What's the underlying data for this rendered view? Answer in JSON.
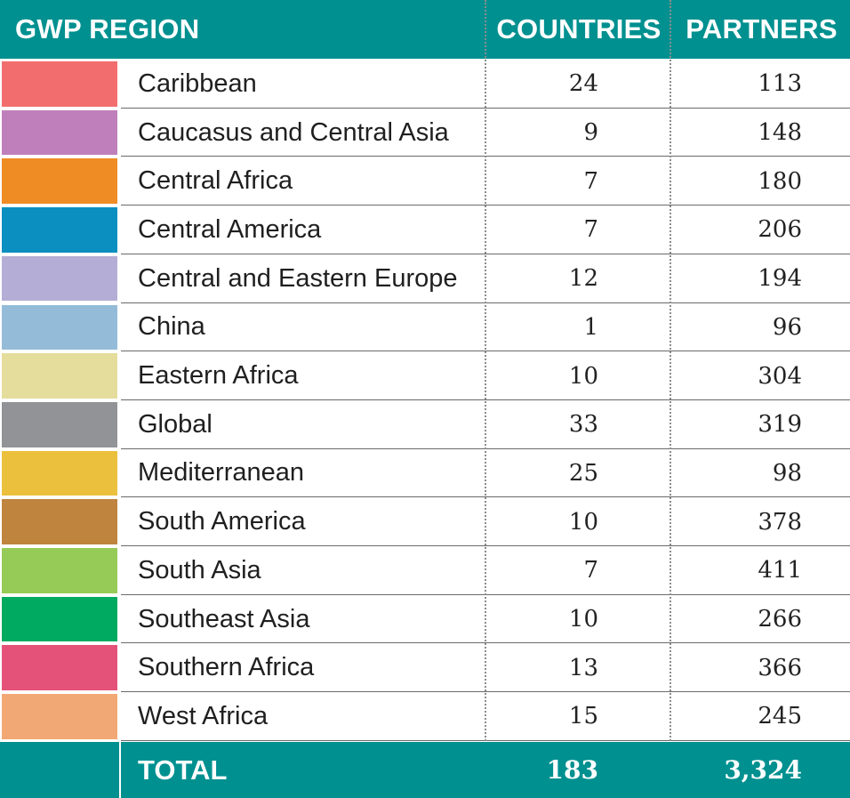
{
  "chart_data": {
    "type": "table",
    "columns": [
      "GWP REGION",
      "COUNTRIES",
      "PARTNERS"
    ],
    "rows": [
      {
        "region": "Caribbean",
        "color": "#f26e6e",
        "countries": "24",
        "partners": "113"
      },
      {
        "region": "Caucasus and Central Asia",
        "color": "#bf7fbb",
        "countries": "9",
        "partners": "148"
      },
      {
        "region": "Central Africa",
        "color": "#f08c24",
        "countries": "7",
        "partners": "180"
      },
      {
        "region": "Central America",
        "color": "#0b8ec0",
        "countries": "7",
        "partners": "206"
      },
      {
        "region": "Central and Eastern Europe",
        "color": "#b4aed6",
        "countries": "12",
        "partners": "194"
      },
      {
        "region": "China",
        "color": "#94bcd8",
        "countries": "1",
        "partners": "96"
      },
      {
        "region": "Eastern Africa",
        "color": "#e4dd9c",
        "countries": "10",
        "partners": "304"
      },
      {
        "region": "Global",
        "color": "#929396",
        "countries": "33",
        "partners": "319"
      },
      {
        "region": "Mediterranean",
        "color": "#ebc03c",
        "countries": "25",
        "partners": "98"
      },
      {
        "region": "South America",
        "color": "#bf843e",
        "countries": "10",
        "partners": "378"
      },
      {
        "region": "South Asia",
        "color": "#96cb58",
        "countries": "7",
        "partners": "411"
      },
      {
        "region": "Southeast Asia",
        "color": "#00aa60",
        "countries": "10",
        "partners": "266"
      },
      {
        "region": "Southern Africa",
        "color": "#e4527a",
        "countries": "13",
        "partners": "366"
      },
      {
        "region": "West Africa",
        "color": "#f2a874",
        "countries": "15",
        "partners": "245"
      }
    ],
    "total": {
      "label": "TOTAL",
      "countries": "183",
      "partners": "3,324"
    }
  },
  "colors": {
    "header_background": "#009090",
    "header_text": "#ffffff"
  }
}
